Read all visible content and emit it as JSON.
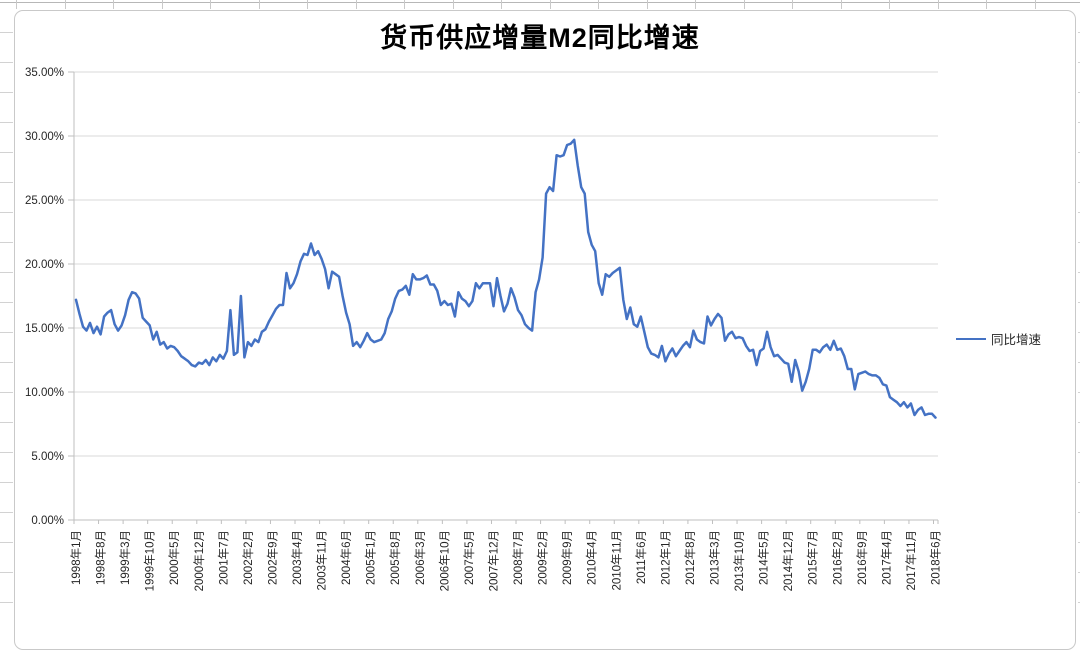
{
  "title": "货币供应增量M2同比增速",
  "legend": {
    "label": "同比增速"
  },
  "colors": {
    "line": "#4472C4",
    "grid": "#d9d9d9",
    "axis": "#bfbfbf",
    "tick_text": "#262626"
  },
  "chart_data": {
    "type": "line",
    "title": "货币供应增量M2同比增速",
    "xlabel": "",
    "ylabel": "",
    "ylim": [
      0,
      35
    ],
    "grid": "horizontal",
    "legend_position": "right",
    "y_tick_labels": [
      "0.00%",
      "5.00%",
      "10.00%",
      "15.00%",
      "20.00%",
      "25.00%",
      "30.00%",
      "35.00%"
    ],
    "x_tick_interval": 7,
    "x_tick_labels": [
      "1998年1月",
      "1998年8月",
      "1999年3月",
      "1999年10月",
      "2000年5月",
      "2000年12月",
      "2001年7月",
      "2002年2月",
      "2002年9月",
      "2003年4月",
      "2003年11月",
      "2004年6月",
      "2005年1月",
      "2005年8月",
      "2006年3月",
      "2006年10月",
      "2007年5月",
      "2007年12月",
      "2008年7月",
      "2009年2月",
      "2009年9月",
      "2010年4月",
      "2010年11月",
      "2011年6月",
      "2012年1月",
      "2012年8月",
      "2013年3月",
      "2013年10月",
      "2014年5月",
      "2014年12月",
      "2015年7月",
      "2016年2月",
      "2016年9月",
      "2017年4月",
      "2017年11月",
      "2018年6月"
    ],
    "series": [
      {
        "name": "同比增速",
        "color": "#4472C4",
        "start_month": "1998-01",
        "unit": "percent",
        "values": [
          17.2,
          16.1,
          15.1,
          14.8,
          15.4,
          14.6,
          15.1,
          14.5,
          15.9,
          16.2,
          16.4,
          15.3,
          14.8,
          15.2,
          16.0,
          17.2,
          17.8,
          17.7,
          17.3,
          15.8,
          15.5,
          15.2,
          14.1,
          14.7,
          13.7,
          13.9,
          13.4,
          13.6,
          13.5,
          13.2,
          12.8,
          12.6,
          12.4,
          12.1,
          12.0,
          12.3,
          12.2,
          12.5,
          12.1,
          12.7,
          12.4,
          12.9,
          12.6,
          13.2,
          16.4,
          12.9,
          13.1,
          17.5,
          12.7,
          13.9,
          13.6,
          14.1,
          13.9,
          14.7,
          14.9,
          15.5,
          16.0,
          16.5,
          16.8,
          16.8,
          19.3,
          18.1,
          18.5,
          19.2,
          20.2,
          20.8,
          20.7,
          21.6,
          20.7,
          21.0,
          20.4,
          19.6,
          18.1,
          19.4,
          19.2,
          19.0,
          17.5,
          16.2,
          15.3,
          13.6,
          13.9,
          13.5,
          14.0,
          14.6,
          14.1,
          13.9,
          14.0,
          14.1,
          14.6,
          15.7,
          16.3,
          17.3,
          17.9,
          18.0,
          18.3,
          17.6,
          19.2,
          18.8,
          18.8,
          18.9,
          19.1,
          18.4,
          18.4,
          17.9,
          16.8,
          17.1,
          16.8,
          16.9,
          15.9,
          17.8,
          17.3,
          17.1,
          16.7,
          17.1,
          18.5,
          18.1,
          18.5,
          18.5,
          18.5,
          16.7,
          18.9,
          17.5,
          16.3,
          16.9,
          18.1,
          17.4,
          16.4,
          16.0,
          15.3,
          15.0,
          14.8,
          17.8,
          18.8,
          20.5,
          25.5,
          26.0,
          25.7,
          28.5,
          28.4,
          28.5,
          29.3,
          29.4,
          29.7,
          27.7,
          26.0,
          25.5,
          22.5,
          21.5,
          21.0,
          18.5,
          17.6,
          19.2,
          19.0,
          19.3,
          19.5,
          19.7,
          17.2,
          15.7,
          16.6,
          15.3,
          15.1,
          15.9,
          14.7,
          13.5,
          13.0,
          12.9,
          12.7,
          13.6,
          12.4,
          13.0,
          13.4,
          12.8,
          13.2,
          13.6,
          13.9,
          13.5,
          14.8,
          14.1,
          13.9,
          13.8,
          15.9,
          15.2,
          15.7,
          16.1,
          15.8,
          14.0,
          14.5,
          14.7,
          14.2,
          14.3,
          14.2,
          13.6,
          13.2,
          13.3,
          12.1,
          13.2,
          13.4,
          14.7,
          13.5,
          12.8,
          12.9,
          12.6,
          12.3,
          12.2,
          10.8,
          12.5,
          11.6,
          10.1,
          10.8,
          11.8,
          13.3,
          13.3,
          13.1,
          13.5,
          13.7,
          13.3,
          14.0,
          13.3,
          13.4,
          12.8,
          11.8,
          11.8,
          10.2,
          11.4,
          11.5,
          11.6,
          11.4,
          11.3,
          11.3,
          11.1,
          10.6,
          10.5,
          9.6,
          9.4,
          9.2,
          8.9,
          9.2,
          8.8,
          9.1,
          8.2,
          8.6,
          8.8,
          8.2,
          8.3,
          8.3,
          8.0
        ]
      }
    ]
  }
}
